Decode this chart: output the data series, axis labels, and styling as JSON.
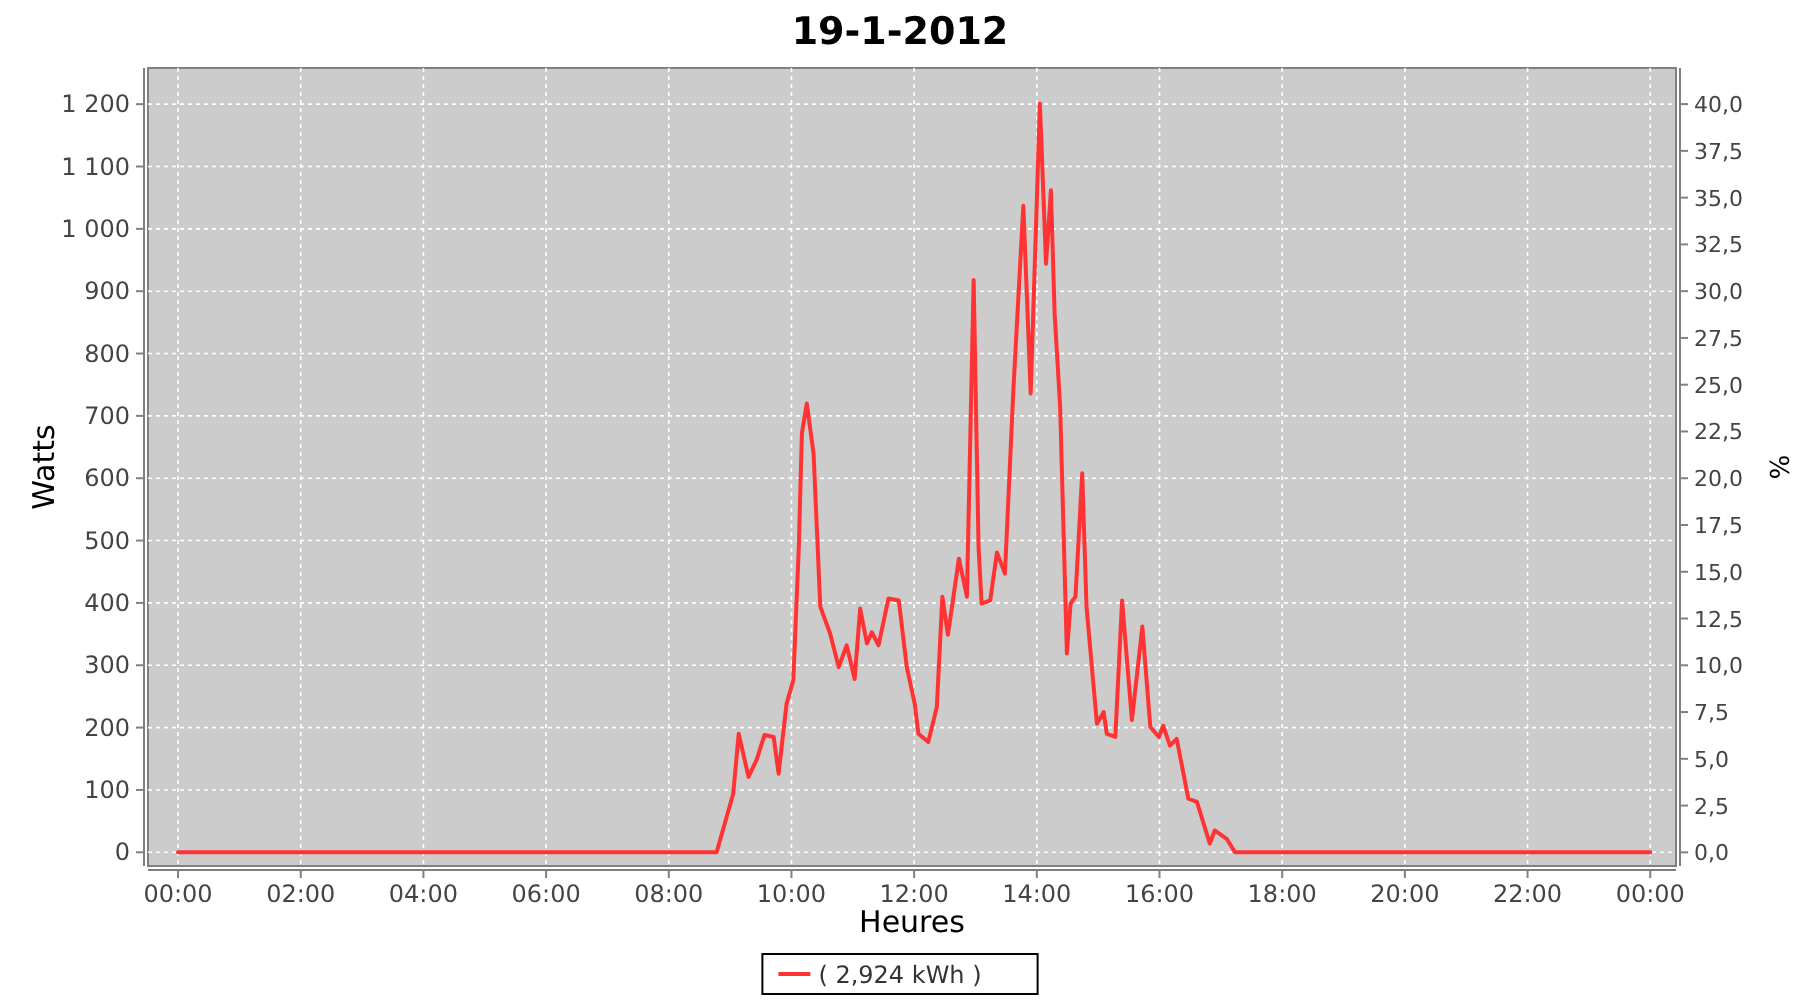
{
  "chart_data": {
    "type": "line",
    "title": "19-1-2012",
    "xlabel": "Heures",
    "ylabel": "Watts",
    "y2label": "%",
    "xlim": [
      -0.49,
      24.42
    ],
    "xticks": [
      {
        "value": 0,
        "label": "00:00"
      },
      {
        "value": 2,
        "label": "02:00"
      },
      {
        "value": 4,
        "label": "04:00"
      },
      {
        "value": 6,
        "label": "06:00"
      },
      {
        "value": 8,
        "label": "08:00"
      },
      {
        "value": 10,
        "label": "10:00"
      },
      {
        "value": 12,
        "label": "12:00"
      },
      {
        "value": 14,
        "label": "14:00"
      },
      {
        "value": 16,
        "label": "16:00"
      },
      {
        "value": 18,
        "label": "18:00"
      },
      {
        "value": 20,
        "label": "20:00"
      },
      {
        "value": 22,
        "label": "22:00"
      },
      {
        "value": 24,
        "label": "00:00"
      }
    ],
    "ylim": [
      -22,
      1258
    ],
    "yticks": [
      0,
      100,
      200,
      300,
      400,
      500,
      600,
      700,
      800,
      900,
      {
        "value": 1000,
        "label": "1 000"
      },
      {
        "value": 1100,
        "label": "1 100"
      },
      {
        "value": 1200,
        "label": "1 200"
      }
    ],
    "y2lim": [
      -0.73,
      41.93
    ],
    "y2ticks": [
      {
        "value": 0,
        "label": "0,0"
      },
      {
        "value": 2.5,
        "label": "2,5"
      },
      {
        "value": 5,
        "label": "5,0"
      },
      {
        "value": 7.5,
        "label": "7,5"
      },
      {
        "value": 10,
        "label": "10,0"
      },
      {
        "value": 12.5,
        "label": "12,5"
      },
      {
        "value": 15,
        "label": "15,0"
      },
      {
        "value": 17.5,
        "label": "17,5"
      },
      {
        "value": 20,
        "label": "20,0"
      },
      {
        "value": 22.5,
        "label": "22,5"
      },
      {
        "value": 25,
        "label": "25,0"
      },
      {
        "value": 27.5,
        "label": "27,5"
      },
      {
        "value": 30,
        "label": "30,0"
      },
      {
        "value": 32.5,
        "label": "32,5"
      },
      {
        "value": 35,
        "label": "35,0"
      },
      {
        "value": 37.5,
        "label": "37,5"
      },
      {
        "value": 40,
        "label": "40,0"
      }
    ],
    "grid": true,
    "legend": "bottom",
    "marker": "none",
    "line_style": "solid",
    "series": [
      {
        "name": "( 2,924 kWh )",
        "color": "#ff3333",
        "x": [
          0,
          4,
          8,
          8.78,
          9.05,
          9.14,
          9.3,
          9.43,
          9.56,
          9.71,
          9.79,
          9.92,
          10.03,
          10.12,
          10.17,
          10.25,
          10.36,
          10.47,
          10.63,
          10.77,
          10.9,
          11.03,
          11.12,
          11.23,
          11.31,
          11.42,
          11.58,
          11.75,
          11.88,
          12.01,
          12.07,
          12.23,
          12.37,
          12.46,
          12.55,
          12.73,
          12.86,
          12.97,
          13.05,
          13.1,
          13.24,
          13.35,
          13.48,
          13.62,
          13.78,
          13.9,
          14.05,
          14.15,
          14.23,
          14.29,
          14.38,
          14.49,
          14.55,
          14.63,
          14.74,
          14.81,
          14.98,
          15.09,
          15.14,
          15.28,
          15.39,
          15.55,
          15.72,
          15.85,
          15.99,
          16.06,
          16.17,
          16.28,
          16.47,
          16.61,
          16.82,
          16.9,
          17.1,
          17.23,
          20,
          24
        ],
        "values": [
          0,
          0,
          0,
          0,
          94,
          190,
          121,
          148,
          188,
          185,
          126,
          238,
          276,
          490,
          672,
          720,
          640,
          394,
          351,
          297,
          332,
          278,
          391,
          335,
          353,
          332,
          407,
          404,
          297,
          238,
          190,
          177,
          233,
          410,
          349,
          471,
          410,
          918,
          490,
          399,
          404,
          481,
          447,
          746,
          1037,
          736,
          1201,
          944,
          1062,
          864,
          715,
          319,
          399,
          410,
          608,
          394,
          206,
          225,
          190,
          185,
          404,
          212,
          362,
          201,
          185,
          203,
          171,
          182,
          86,
          81,
          14,
          35,
          21,
          0,
          0,
          0
        ]
      }
    ]
  }
}
